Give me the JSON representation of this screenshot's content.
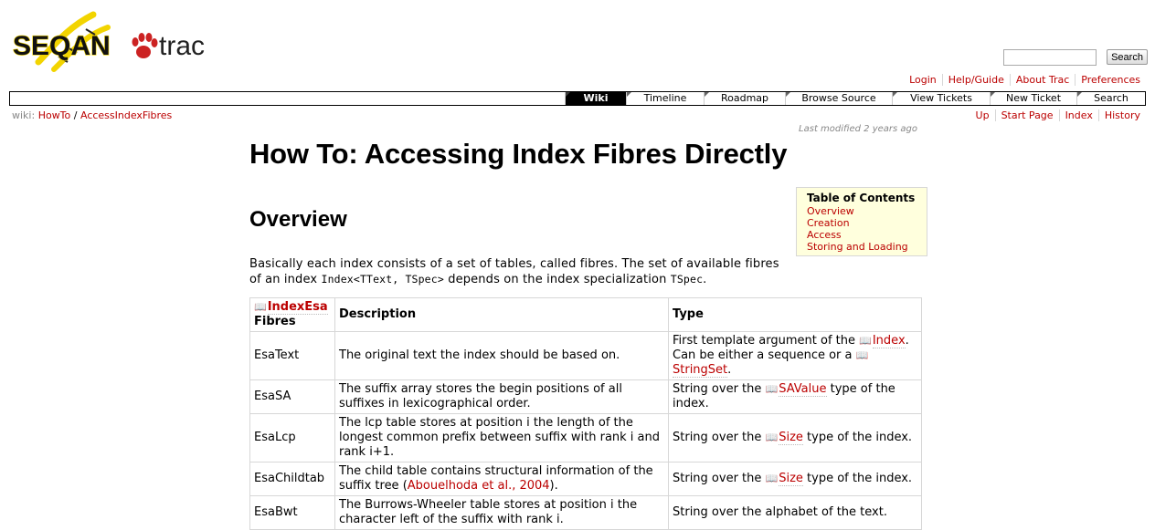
{
  "header": {
    "logo_text": "SEQAN",
    "logo_trac": "trac",
    "search_button": "Search"
  },
  "metanav": [
    "Login",
    "Help/Guide",
    "About Trac",
    "Preferences"
  ],
  "mainnav": [
    "Wiki",
    "Timeline",
    "Roadmap",
    "Browse Source",
    "View Tickets",
    "New Ticket",
    "Search"
  ],
  "breadcrumb": {
    "label": "wiki:",
    "parts": [
      "HowTo",
      "AccessIndexFibres"
    ],
    "sep": "/"
  },
  "ctxtnav": [
    "Up",
    "Start Page",
    "Index",
    "History"
  ],
  "last_modified": "Last modified 2 years ago",
  "page": {
    "title": "How To: Accessing Index Fibres Directly",
    "h2": "Overview",
    "intro_1": "Basically each index consists of a set of tables, called fibres. The set of available fibres of an index ",
    "intro_code1": "Index<TText, TSpec>",
    "intro_2": " depends on the index specialization ",
    "intro_code2": "TSpec",
    "intro_3": "."
  },
  "toc": {
    "title": "Table of Contents",
    "items": [
      "Overview",
      "Creation",
      "Access",
      "Storing and Loading"
    ]
  },
  "table": {
    "h1_link": "IndexEsa",
    "h1_text": "Fibres",
    "h2": "Description",
    "h3": "Type",
    "rows": [
      {
        "name": "EsaText",
        "desc": "The original text the index should be based on.",
        "type_pre": "First template argument of the ",
        "type_l1": "Index",
        "type_mid": ". Can be either a sequence or a ",
        "type_l2": "StringSet",
        "type_post": "."
      },
      {
        "name": "EsaSA",
        "desc": "The suffix array stores the begin positions of all suffixes in lexicographical order.",
        "type_pre": "String over the ",
        "type_link": "SAValue",
        "type_post": " type of the index."
      },
      {
        "name": "EsaLcp",
        "desc": "The lcp table stores at position i the length of the longest common prefix between suffix with rank i and rank i+1.",
        "type_pre": "String over the ",
        "type_link": "Size",
        "type_post": " type of the index."
      },
      {
        "name": "EsaChildtab",
        "desc_pre": "The child table contains structural information of the suffix tree (",
        "desc_link": "Abouelhoda et al., 2004",
        "desc_post": ").",
        "type_pre": "String over the ",
        "type_link": "Size",
        "type_post": " type of the index."
      },
      {
        "name": "EsaBwt",
        "desc": "The Burrows-Wheeler table stores at position i the character left of the suffix with rank i.",
        "type": "String over the alphabet of the text."
      }
    ]
  },
  "colors": {
    "link": "#bb0000",
    "toc_bg": "#ffffdd",
    "logo_yellow": "#f2d400",
    "logo_red": "#cc2222"
  }
}
